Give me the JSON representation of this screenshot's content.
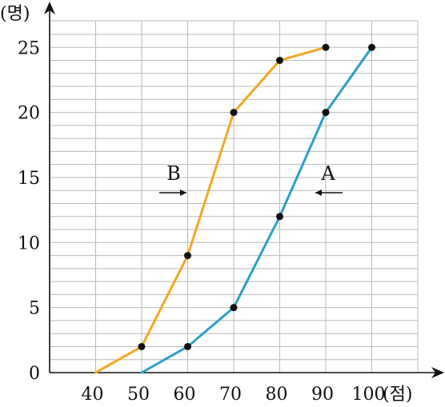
{
  "chart_data": {
    "type": "line",
    "x": [
      40,
      50,
      60,
      70,
      80,
      90,
      100
    ],
    "xlim": [
      40,
      100
    ],
    "ylim": [
      0,
      25
    ],
    "y_minor_step": 1,
    "x_ticks": [
      "40",
      "50",
      "60",
      "70",
      "80",
      "90",
      "100"
    ],
    "y_ticks": [
      "0",
      "5",
      "10",
      "15",
      "20",
      "25"
    ],
    "y_unit": "(명)",
    "x_unit": "(점)",
    "grid": true,
    "series": [
      {
        "name": "B",
        "color": "#f5a623",
        "points": [
          {
            "x": 40,
            "y": 0
          },
          {
            "x": 50,
            "y": 2
          },
          {
            "x": 60,
            "y": 9
          },
          {
            "x": 70,
            "y": 20
          },
          {
            "x": 80,
            "y": 24
          },
          {
            "x": 90,
            "y": 25
          }
        ]
      },
      {
        "name": "A",
        "color": "#2a9fc9",
        "points": [
          {
            "x": 50,
            "y": 0
          },
          {
            "x": 60,
            "y": 2
          },
          {
            "x": 70,
            "y": 5
          },
          {
            "x": 80,
            "y": 12
          },
          {
            "x": 90,
            "y": 20
          },
          {
            "x": 100,
            "y": 25
          }
        ]
      }
    ],
    "annotations": [
      {
        "text": "B",
        "arrow": "right"
      },
      {
        "text": "A",
        "arrow": "left"
      }
    ]
  }
}
